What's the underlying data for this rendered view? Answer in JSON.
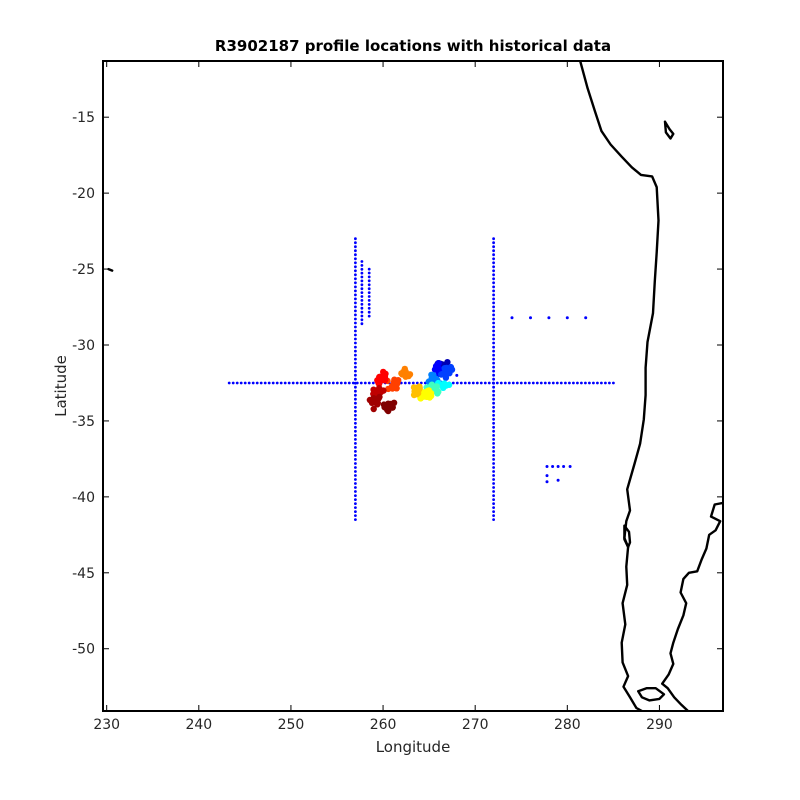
{
  "chart_data": {
    "type": "scatter",
    "title": "R3902187 profile locations with historical data",
    "xlabel": "Longitude",
    "ylabel": "Latitude",
    "xlim": [
      229.6,
      296.9
    ],
    "ylim": [
      -54.1,
      -11.3
    ],
    "xticks": [
      230,
      240,
      250,
      260,
      270,
      280,
      290
    ],
    "yticks": [
      -15,
      -20,
      -25,
      -30,
      -35,
      -40,
      -45,
      -50
    ],
    "grid": false,
    "legend": "none",
    "colors": {
      "historical": "#0000ff",
      "coastline": "#000000",
      "profile_colormap": [
        "#00008f",
        "#0000ff",
        "#00ffff",
        "#80ff80",
        "#ffff00",
        "#ff8000",
        "#ff0000",
        "#800000"
      ]
    },
    "historical_lines": [
      {
        "from": [
          243.3,
          -32.5
        ],
        "to": [
          285.0,
          -32.5
        ]
      },
      {
        "from": [
          257.0,
          -23.0
        ],
        "to": [
          257.0,
          -41.5
        ]
      },
      {
        "from": [
          272.0,
          -23.0
        ],
        "to": [
          272.0,
          -41.5
        ]
      },
      {
        "from": [
          258.5,
          -25.0
        ],
        "to": [
          258.5,
          -28.1
        ]
      },
      {
        "from": [
          257.7,
          -24.5
        ],
        "to": [
          257.7,
          -28.6
        ]
      }
    ],
    "historical_points": [
      [
        274.0,
        -28.2
      ],
      [
        276.0,
        -28.2
      ],
      [
        278.0,
        -28.2
      ],
      [
        280.0,
        -28.2
      ],
      [
        282.0,
        -28.2
      ],
      [
        277.8,
        -38.0
      ],
      [
        278.4,
        -38.0
      ],
      [
        279.0,
        -38.0
      ],
      [
        279.6,
        -38.0
      ],
      [
        280.3,
        -38.0
      ],
      [
        277.8,
        -38.6
      ],
      [
        279.0,
        -38.9
      ],
      [
        277.8,
        -39.0
      ],
      [
        268.0,
        -32.0
      ]
    ],
    "profile_clusters": [
      {
        "lon": 266.3,
        "lat": -31.3,
        "color": "#0000b4"
      },
      {
        "lon": 266.0,
        "lat": -31.5,
        "color": "#0000ff"
      },
      {
        "lon": 266.9,
        "lat": -31.8,
        "color": "#0040ff"
      },
      {
        "lon": 265.6,
        "lat": -32.3,
        "color": "#0080ff"
      },
      {
        "lon": 266.6,
        "lat": -32.6,
        "color": "#00ffff"
      },
      {
        "lon": 265.4,
        "lat": -32.9,
        "color": "#40ffbf"
      },
      {
        "lon": 264.8,
        "lat": -33.4,
        "color": "#ffff00"
      },
      {
        "lon": 263.6,
        "lat": -32.9,
        "color": "#ffbf00"
      },
      {
        "lon": 262.4,
        "lat": -31.8,
        "color": "#ff8000"
      },
      {
        "lon": 261.1,
        "lat": -32.6,
        "color": "#ff4000"
      },
      {
        "lon": 260.0,
        "lat": -32.2,
        "color": "#ff0000"
      },
      {
        "lon": 259.4,
        "lat": -33.1,
        "color": "#bf0000"
      },
      {
        "lon": 259.2,
        "lat": -33.8,
        "color": "#a00000"
      },
      {
        "lon": 260.8,
        "lat": -34.0,
        "color": "#800000"
      }
    ],
    "coastline": [
      [
        [
          281.4,
          -11.3
        ],
        [
          282.2,
          -13.1
        ],
        [
          283.0,
          -14.6
        ],
        [
          283.7,
          -15.9
        ],
        [
          284.7,
          -16.8
        ],
        [
          285.9,
          -17.6
        ],
        [
          287.0,
          -18.3
        ],
        [
          288.0,
          -18.8
        ],
        [
          289.2,
          -18.9
        ],
        [
          289.7,
          -19.6
        ],
        [
          289.9,
          -21.8
        ],
        [
          289.7,
          -23.9
        ],
        [
          289.5,
          -25.8
        ],
        [
          289.3,
          -27.9
        ],
        [
          288.7,
          -29.8
        ],
        [
          288.5,
          -31.5
        ],
        [
          288.5,
          -33.3
        ],
        [
          288.3,
          -34.9
        ],
        [
          287.9,
          -36.5
        ],
        [
          287.3,
          -37.8
        ],
        [
          286.5,
          -39.5
        ],
        [
          286.8,
          -40.9
        ],
        [
          286.4,
          -41.6
        ],
        [
          286.2,
          -42.7
        ],
        [
          286.6,
          -43.3
        ],
        [
          286.4,
          -44.6
        ],
        [
          286.5,
          -45.8
        ],
        [
          286.0,
          -47.0
        ],
        [
          286.3,
          -48.4
        ],
        [
          285.9,
          -49.6
        ],
        [
          286.0,
          -50.9
        ],
        [
          286.6,
          -51.8
        ],
        [
          286.1,
          -52.5
        ],
        [
          286.8,
          -53.2
        ],
        [
          287.5,
          -53.9
        ],
        [
          288.1,
          -54.1
        ]
      ],
      [
        [
          296.9,
          -40.4
        ],
        [
          296.0,
          -40.5
        ],
        [
          295.6,
          -41.3
        ],
        [
          296.6,
          -41.6
        ],
        [
          296.1,
          -42.2
        ],
        [
          295.4,
          -42.5
        ],
        [
          295.1,
          -43.4
        ],
        [
          294.6,
          -44.1
        ],
        [
          294.1,
          -44.9
        ],
        [
          293.2,
          -45.0
        ],
        [
          292.6,
          -45.4
        ],
        [
          292.3,
          -46.3
        ],
        [
          292.9,
          -47.0
        ],
        [
          292.6,
          -47.8
        ],
        [
          292.0,
          -48.7
        ],
        [
          291.5,
          -49.6
        ],
        [
          291.2,
          -50.3
        ],
        [
          291.5,
          -51.0
        ],
        [
          291.0,
          -51.7
        ],
        [
          290.3,
          -52.3
        ],
        [
          290.9,
          -52.6
        ],
        [
          291.6,
          -53.2
        ],
        [
          292.4,
          -53.7
        ],
        [
          293.1,
          -54.1
        ]
      ],
      [
        [
          287.7,
          -52.8
        ],
        [
          288.6,
          -52.6
        ],
        [
          289.6,
          -52.6
        ],
        [
          290.5,
          -53.0
        ],
        [
          290.0,
          -53.3
        ],
        [
          288.9,
          -53.4
        ],
        [
          288.1,
          -53.2
        ],
        [
          287.7,
          -52.8
        ]
      ],
      [
        [
          286.2,
          -41.9
        ],
        [
          286.7,
          -42.3
        ],
        [
          286.8,
          -43.0
        ],
        [
          286.6,
          -43.3
        ],
        [
          286.2,
          -42.8
        ],
        [
          286.2,
          -41.9
        ]
      ],
      [
        [
          290.6,
          -15.3
        ],
        [
          291.1,
          -15.8
        ],
        [
          291.5,
          -16.1
        ],
        [
          291.2,
          -16.4
        ],
        [
          290.7,
          -16.0
        ],
        [
          290.6,
          -15.3
        ]
      ],
      [
        [
          230.2,
          -25.0
        ],
        [
          230.6,
          -25.1
        ]
      ]
    ]
  }
}
